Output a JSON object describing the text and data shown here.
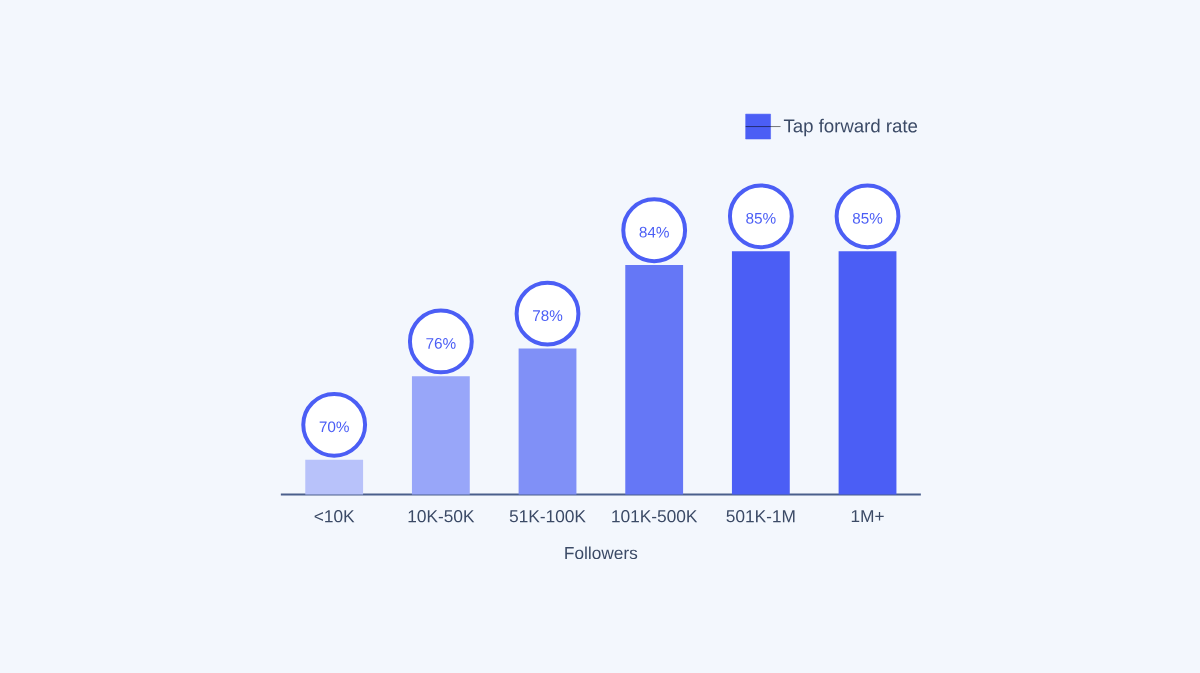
{
  "chart_data": {
    "type": "bar",
    "xlabel": "Followers",
    "categories": [
      "<10K",
      "10K-50K",
      "51K-100K",
      "101K-500K",
      "501K-1M",
      "1M+"
    ],
    "series": [
      {
        "name": "Tap forward rate",
        "color": "#4b5ef5",
        "colors": [
          "#b8c2fa",
          "#98a6f9",
          "#8090f7",
          "#6577f6",
          "#4b5ef5",
          "#4b5ef5"
        ],
        "values": [
          70,
          76,
          78,
          84,
          85,
          85
        ],
        "value_labels": [
          "70%",
          "76%",
          "78%",
          "84%",
          "85%",
          "85%"
        ]
      }
    ],
    "ylim": [
      67.5,
      85
    ],
    "legend": "top right",
    "tick_labels": "x"
  }
}
